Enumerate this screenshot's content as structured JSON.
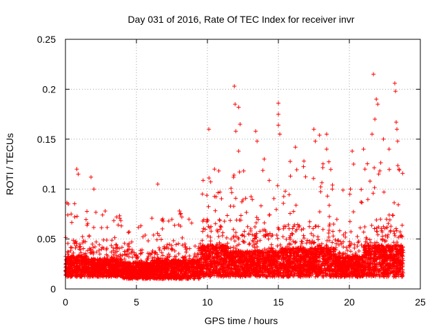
{
  "chart_data": {
    "type": "scatter",
    "title": "Day 031 of 2016, Rate Of TEC Index for receiver invr",
    "xlabel": "GPS time / hours",
    "ylabel": "ROTI / TECUs",
    "xlim": [
      0,
      25
    ],
    "ylim": [
      0,
      0.25
    ],
    "xticks": [
      0,
      5,
      10,
      15,
      20,
      25
    ],
    "yticks": [
      0,
      0.05,
      0.1,
      0.15,
      0.2,
      0.25
    ],
    "xtick_labels": [
      "0",
      "5",
      "10",
      "15",
      "20",
      "25"
    ],
    "ytick_labels": [
      "0",
      "0.05",
      "0.1",
      "0.15",
      "0.2",
      "0.25"
    ],
    "grid": true,
    "marker": "+",
    "color": "#ff0000",
    "series": [
      {
        "name": "ROTI",
        "notable_points": [
          {
            "x": 0.2,
            "y": 0.085
          },
          {
            "x": 0.4,
            "y": 0.075
          },
          {
            "x": 0.8,
            "y": 0.12
          },
          {
            "x": 0.9,
            "y": 0.115
          },
          {
            "x": 1.8,
            "y": 0.112
          },
          {
            "x": 2.0,
            "y": 0.1
          },
          {
            "x": 2.8,
            "y": 0.078
          },
          {
            "x": 3.6,
            "y": 0.072
          },
          {
            "x": 6.5,
            "y": 0.105
          },
          {
            "x": 8.2,
            "y": 0.072
          },
          {
            "x": 10.1,
            "y": 0.16
          },
          {
            "x": 10.5,
            "y": 0.12
          },
          {
            "x": 11.9,
            "y": 0.203
          },
          {
            "x": 11.95,
            "y": 0.185
          },
          {
            "x": 12.2,
            "y": 0.182
          },
          {
            "x": 12.3,
            "y": 0.165
          },
          {
            "x": 12.0,
            "y": 0.158
          },
          {
            "x": 12.2,
            "y": 0.138
          },
          {
            "x": 13.4,
            "y": 0.158
          },
          {
            "x": 13.5,
            "y": 0.148
          },
          {
            "x": 14.0,
            "y": 0.13
          },
          {
            "x": 15.0,
            "y": 0.186
          },
          {
            "x": 15.0,
            "y": 0.175
          },
          {
            "x": 15.0,
            "y": 0.164
          },
          {
            "x": 15.1,
            "y": 0.155
          },
          {
            "x": 16.2,
            "y": 0.142
          },
          {
            "x": 16.8,
            "y": 0.128
          },
          {
            "x": 17.5,
            "y": 0.16
          },
          {
            "x": 17.6,
            "y": 0.148
          },
          {
            "x": 17.9,
            "y": 0.154
          },
          {
            "x": 18.4,
            "y": 0.155
          },
          {
            "x": 18.4,
            "y": 0.14
          },
          {
            "x": 18.8,
            "y": 0.1
          },
          {
            "x": 20.2,
            "y": 0.138
          },
          {
            "x": 20.3,
            "y": 0.125
          },
          {
            "x": 21.0,
            "y": 0.14
          },
          {
            "x": 21.1,
            "y": 0.12
          },
          {
            "x": 21.7,
            "y": 0.215
          },
          {
            "x": 21.9,
            "y": 0.19
          },
          {
            "x": 22.0,
            "y": 0.185
          },
          {
            "x": 21.8,
            "y": 0.17
          },
          {
            "x": 21.6,
            "y": 0.155
          },
          {
            "x": 22.4,
            "y": 0.15
          },
          {
            "x": 23.2,
            "y": 0.206
          },
          {
            "x": 23.25,
            "y": 0.198
          },
          {
            "x": 23.3,
            "y": 0.167
          },
          {
            "x": 23.35,
            "y": 0.16
          },
          {
            "x": 23.4,
            "y": 0.148
          },
          {
            "x": 23.5,
            "y": 0.12
          },
          {
            "x": 22.8,
            "y": 0.14
          }
        ],
        "baseline_segments": [
          {
            "x_start": 0.0,
            "x_end": 1.5,
            "typical_low": 0.012,
            "typical_high": 0.05,
            "peak": 0.09
          },
          {
            "x_start": 1.5,
            "x_end": 4.0,
            "typical_low": 0.012,
            "typical_high": 0.045,
            "peak": 0.08
          },
          {
            "x_start": 4.0,
            "x_end": 6.0,
            "typical_low": 0.01,
            "typical_high": 0.04,
            "peak": 0.065
          },
          {
            "x_start": 6.0,
            "x_end": 9.5,
            "typical_low": 0.01,
            "typical_high": 0.045,
            "peak": 0.08
          },
          {
            "x_start": 9.5,
            "x_end": 11.5,
            "typical_low": 0.012,
            "typical_high": 0.07,
            "peak": 0.12
          },
          {
            "x_start": 11.5,
            "x_end": 14.5,
            "typical_low": 0.012,
            "typical_high": 0.06,
            "peak": 0.12
          },
          {
            "x_start": 14.5,
            "x_end": 19.0,
            "typical_low": 0.012,
            "typical_high": 0.065,
            "peak": 0.13
          },
          {
            "x_start": 19.0,
            "x_end": 21.0,
            "typical_low": 0.012,
            "typical_high": 0.05,
            "peak": 0.1
          },
          {
            "x_start": 21.0,
            "x_end": 23.8,
            "typical_low": 0.012,
            "typical_high": 0.07,
            "peak": 0.13
          }
        ]
      }
    ]
  }
}
